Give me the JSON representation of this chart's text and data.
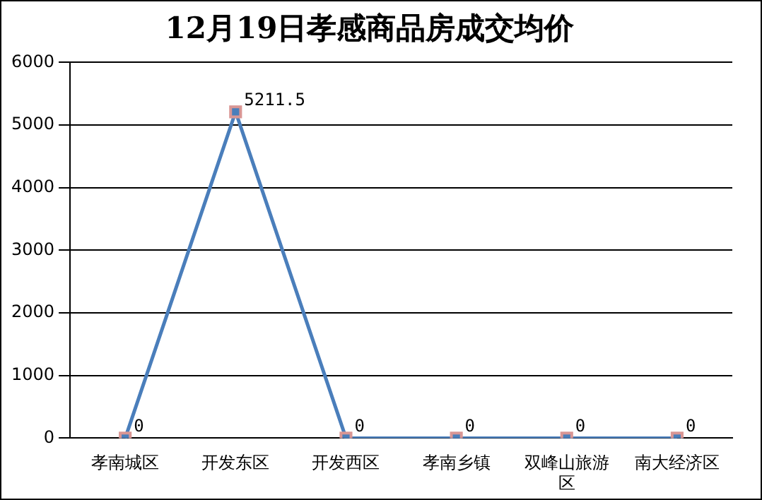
{
  "chart_data": {
    "type": "line",
    "title": "12月19日孝感商品房成交均价",
    "categories": [
      "孝南城区",
      "开发东区",
      "开发西区",
      "孝南乡镇",
      "双峰山旅游区",
      "南大经济区"
    ],
    "series": [
      {
        "color": "#4a7ebb",
        "values": [
          0,
          5211.5,
          0,
          0,
          0,
          0
        ]
      }
    ],
    "ylim": [
      0,
      6000
    ],
    "yticks": [
      0,
      1000,
      2000,
      3000,
      4000,
      5000,
      6000
    ],
    "grid": "y",
    "legend": false,
    "marker": "square",
    "line_style": "solid",
    "data_labels": true
  }
}
